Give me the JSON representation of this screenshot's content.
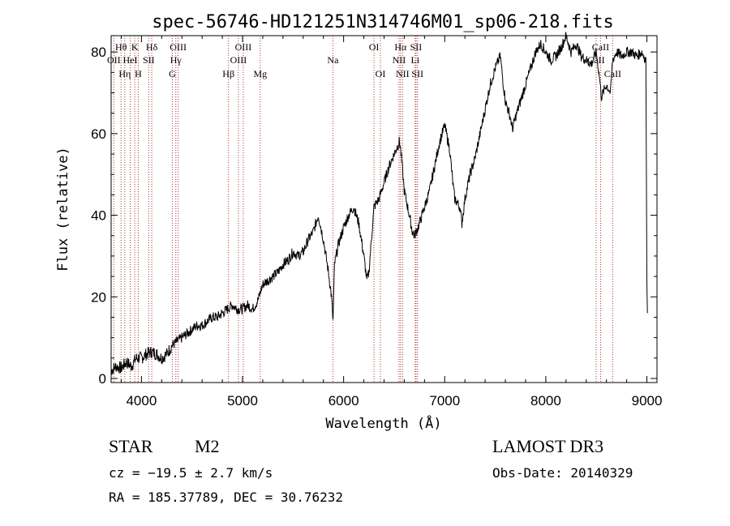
{
  "chart_data": {
    "type": "line",
    "title": "spec-56746-HD121251N314746M01_sp06-218.fits",
    "xlabel": "Wavelength (Å)",
    "ylabel": "Flux (relative)",
    "xlim": [
      3700,
      9100
    ],
    "ylim": [
      -1,
      84
    ],
    "xticks": [
      4000,
      5000,
      6000,
      7000,
      8000,
      9000
    ],
    "yticks": [
      0,
      20,
      40,
      60,
      80
    ],
    "series": [
      {
        "name": "spectrum",
        "x": [
          3700,
          3750,
          3800,
          3850,
          3900,
          3950,
          4000,
          4050,
          4100,
          4150,
          4200,
          4250,
          4300,
          4350,
          4400,
          4450,
          4500,
          4550,
          4600,
          4650,
          4700,
          4750,
          4800,
          4850,
          4900,
          4950,
          5000,
          5050,
          5100,
          5150,
          5200,
          5250,
          5300,
          5350,
          5400,
          5450,
          5500,
          5550,
          5600,
          5650,
          5700,
          5750,
          5800,
          5850,
          5880,
          5895,
          5910,
          5950,
          6000,
          6050,
          6100,
          6150,
          6200,
          6230,
          6250,
          6300,
          6350,
          6400,
          6450,
          6500,
          6550,
          6560,
          6580,
          6600,
          6650,
          6680,
          6700,
          6720,
          6750,
          6800,
          6850,
          6900,
          6950,
          7000,
          7050,
          7080,
          7100,
          7150,
          7170,
          7200,
          7250,
          7300,
          7350,
          7400,
          7450,
          7500,
          7550,
          7580,
          7600,
          7650,
          7670,
          7700,
          7750,
          7800,
          7850,
          7900,
          7950,
          8000,
          8050,
          8100,
          8150,
          8200,
          8250,
          8300,
          8350,
          8400,
          8450,
          8500,
          8530,
          8550,
          8600,
          8640,
          8660,
          8700,
          8750,
          8800,
          8850,
          8900,
          8950,
          8990,
          9000,
          9005
        ],
        "y": [
          2,
          3,
          2.5,
          4,
          3,
          5,
          5,
          6,
          6.5,
          6,
          5,
          6,
          8,
          9,
          10,
          11,
          12,
          13,
          13,
          14,
          15,
          15,
          16,
          17,
          18,
          17,
          17,
          18,
          17,
          19,
          23,
          24,
          25,
          26,
          28,
          29,
          31,
          30,
          31,
          34,
          36,
          40,
          34,
          26,
          20,
          14,
          28,
          33,
          37,
          40,
          42,
          38,
          30,
          24,
          26,
          42,
          44,
          48,
          52,
          55,
          58,
          57,
          52,
          46,
          40,
          36,
          35,
          36,
          38,
          42,
          46,
          52,
          58,
          62,
          56,
          48,
          44,
          42,
          38,
          44,
          50,
          54,
          60,
          66,
          72,
          76,
          79,
          72,
          68,
          64,
          61,
          64,
          68,
          72,
          76,
          80,
          82,
          80,
          78,
          79,
          81,
          84,
          80,
          82,
          79,
          78,
          77,
          80,
          74,
          69,
          72,
          70,
          78,
          80,
          79,
          80,
          80,
          79,
          80,
          78,
          24,
          16
        ]
      }
    ],
    "emission_lines": [
      {
        "label": "Hθ",
        "wl": 3798,
        "row": 1
      },
      {
        "label": "OII",
        "wl": 3727,
        "row": 2
      },
      {
        "label": "Hη",
        "wl": 3835,
        "row": 3
      },
      {
        "label": "K",
        "wl": 3934,
        "row": 1
      },
      {
        "label": "HeI",
        "wl": 3889,
        "row": 2
      },
      {
        "label": "H",
        "wl": 3968,
        "row": 3
      },
      {
        "label": "Hδ",
        "wl": 4102,
        "row": 1
      },
      {
        "label": "SII",
        "wl": 4072,
        "row": 2
      },
      {
        "label": "OIII",
        "wl": 4363,
        "row": 1
      },
      {
        "label": "Hγ",
        "wl": 4340,
        "row": 2
      },
      {
        "label": "G",
        "wl": 4305,
        "row": 3
      },
      {
        "label": "Hβ",
        "wl": 4861,
        "row": 3
      },
      {
        "label": "OIII",
        "wl": 5007,
        "row": 1
      },
      {
        "label": "OIII",
        "wl": 4959,
        "row": 2
      },
      {
        "label": "Mg",
        "wl": 5175,
        "row": 3
      },
      {
        "label": "Na",
        "wl": 5894,
        "row": 2
      },
      {
        "label": "OI",
        "wl": 6300,
        "row": 1
      },
      {
        "label": "OI",
        "wl": 6364,
        "row": 3
      },
      {
        "label": "Hα",
        "wl": 6563,
        "row": 1
      },
      {
        "label": "NII",
        "wl": 6548,
        "row": 2
      },
      {
        "label": "NII",
        "wl": 6583,
        "row": 3
      },
      {
        "label": "SII",
        "wl": 6716,
        "row": 1
      },
      {
        "label": "Li",
        "wl": 6708,
        "row": 2
      },
      {
        "label": "SII",
        "wl": 6731,
        "row": 3
      },
      {
        "label": "CaII",
        "wl": 8542,
        "row": 1
      },
      {
        "label": "CaII",
        "wl": 8498,
        "row": 2
      },
      {
        "label": "CaII",
        "wl": 8662,
        "row": 3
      }
    ]
  },
  "info": {
    "object_class": "STAR",
    "subclass": "M2",
    "survey": "LAMOST DR3",
    "redshift": "cz = −19.5 ± 2.7 km/s",
    "obs_date": "Obs-Date: 20140329",
    "coords": "RA = 185.37789, DEC =  30.76232"
  },
  "colors": {
    "line_marker": "#b03030",
    "spectrum": "#000000"
  }
}
